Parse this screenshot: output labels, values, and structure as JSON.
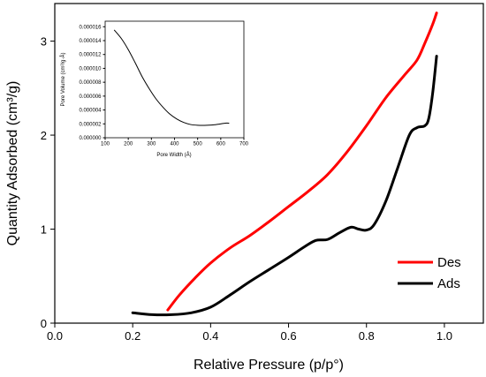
{
  "chart_data": [
    {
      "type": "line",
      "xlabel": "Relative Pressure (p/p°)",
      "ylabel": "Quantity Adsorbed (cm³/g)",
      "xlim": [
        0.0,
        1.1
      ],
      "ylim": [
        0.0,
        3.4
      ],
      "xticks": [
        0.0,
        0.2,
        0.4,
        0.6,
        0.8,
        1.0
      ],
      "xtick_labels": [
        "0.0",
        "0.2",
        "0.4",
        "0.6",
        "0.8",
        "1.0"
      ],
      "yticks": [
        0,
        1,
        2,
        3
      ],
      "ytick_labels": [
        "0",
        "1",
        "2",
        "3"
      ],
      "grid": false,
      "legend": "bottom-right",
      "series": [
        {
          "name": "Des",
          "color": "#ff0000",
          "x": [
            0.29,
            0.32,
            0.36,
            0.4,
            0.45,
            0.5,
            0.55,
            0.6,
            0.65,
            0.7,
            0.75,
            0.8,
            0.85,
            0.9,
            0.93,
            0.95,
            0.97,
            0.98
          ],
          "y": [
            0.14,
            0.3,
            0.48,
            0.64,
            0.8,
            0.93,
            1.08,
            1.24,
            1.4,
            1.58,
            1.82,
            2.1,
            2.4,
            2.65,
            2.8,
            2.98,
            3.18,
            3.3
          ]
        },
        {
          "name": "Ads",
          "color": "#000000",
          "x": [
            0.2,
            0.25,
            0.3,
            0.35,
            0.4,
            0.45,
            0.5,
            0.55,
            0.6,
            0.64,
            0.67,
            0.7,
            0.73,
            0.76,
            0.78,
            0.8,
            0.82,
            0.85,
            0.88,
            0.91,
            0.93,
            0.95,
            0.96,
            0.97,
            0.98
          ],
          "y": [
            0.11,
            0.09,
            0.09,
            0.11,
            0.17,
            0.3,
            0.44,
            0.57,
            0.7,
            0.81,
            0.88,
            0.89,
            0.96,
            1.02,
            1.0,
            0.99,
            1.05,
            1.3,
            1.65,
            2.0,
            2.08,
            2.1,
            2.18,
            2.45,
            2.84
          ]
        }
      ]
    },
    {
      "type": "line",
      "xlabel": "Pore Width (Å)",
      "ylabel": "Pore Volume (cm³/g·Å)",
      "xlim": [
        100,
        700
      ],
      "ylim": [
        0.0,
        1.68e-05
      ],
      "xticks": [
        100,
        200,
        300,
        400,
        500,
        600,
        700
      ],
      "xtick_labels": [
        "100",
        "200",
        "300",
        "400",
        "500",
        "600",
        "700"
      ],
      "yticks": [
        0.0,
        2e-06,
        4e-06,
        6e-06,
        8e-06,
        1e-05,
        1.2e-05,
        1.4e-05,
        1.6e-05
      ],
      "ytick_labels": [
        "0.000000",
        "0.000002",
        "0.000004",
        "0.000006",
        "0.000008",
        "0.000010",
        "0.000012",
        "0.000014",
        "0.000016"
      ],
      "grid": false,
      "series": [
        {
          "color": "#000000",
          "x": [
            140,
            170,
            200,
            230,
            260,
            290,
            320,
            350,
            380,
            410,
            440,
            470,
            500,
            540,
            580,
            620,
            635
          ],
          "y": [
            1.55e-05,
            1.43e-05,
            1.27e-05,
            1.08e-05,
            8.8e-06,
            7.1e-06,
            5.6e-06,
            4.4e-06,
            3.4e-06,
            2.7e-06,
            2.2e-06,
            1.9e-06,
            1.8e-06,
            1.8e-06,
            1.9e-06,
            2.1e-06,
            2.1e-06
          ]
        }
      ]
    }
  ]
}
